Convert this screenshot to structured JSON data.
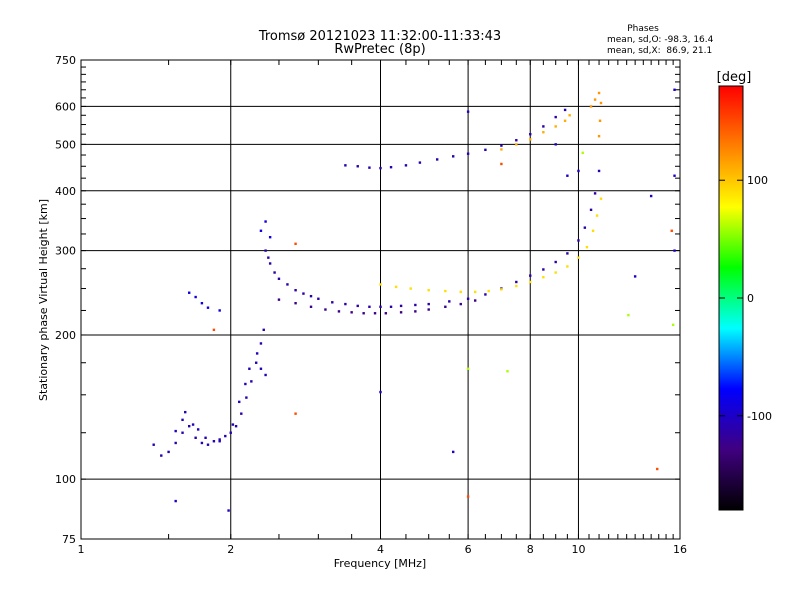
{
  "chart_data": {
    "type": "scatter",
    "title": "Tromsø 20121023 11:32:00-11:33:43",
    "subtitle": "RwPretec (8p)",
    "xlabel": "Frequency [MHz]",
    "ylabel": "Stationary phase Virtual Height [km]",
    "x_scale": "log",
    "y_scale": "log",
    "xlim": [
      1,
      16
    ],
    "ylim": [
      75,
      750
    ],
    "x_ticks": [
      1,
      2,
      4,
      6,
      8,
      10,
      16
    ],
    "y_ticks": [
      75,
      100,
      200,
      300,
      400,
      500,
      600,
      750
    ],
    "grid": true,
    "phase_stats": {
      "heading": "Phases",
      "line_o": "mean, sd,O: -98.3, 16.4",
      "line_x": "mean, sd,X:  86.9, 21.1"
    },
    "colorbar": {
      "label": "[deg]",
      "range": [
        -180,
        180
      ],
      "ticks": [
        100,
        0,
        -100
      ],
      "colors": [
        "#ff0000",
        "#ff8000",
        "#ffff00",
        "#00ff00",
        "#00ffff",
        "#0000ff",
        "#400080",
        "#000000"
      ]
    },
    "traces": [
      {
        "name": "",
        "phase": -110,
        "points": [
          [
            1.4,
            118
          ],
          [
            1.45,
            112
          ],
          [
            1.5,
            114
          ],
          [
            1.55,
            119
          ],
          [
            1.6,
            125
          ],
          [
            1.65,
            129
          ],
          [
            1.7,
            122
          ],
          [
            1.75,
            119
          ],
          [
            1.8,
            118
          ],
          [
            1.85,
            120
          ],
          [
            1.9,
            121
          ],
          [
            1.95,
            123
          ],
          [
            2.0,
            125
          ],
          [
            2.05,
            129
          ],
          [
            2.1,
            137
          ],
          [
            2.15,
            148
          ],
          [
            2.2,
            160
          ],
          [
            2.25,
            175
          ],
          [
            2.3,
            192
          ],
          [
            2.33,
            205
          ]
        ]
      },
      {
        "name": "",
        "phase": -105,
        "points": [
          [
            1.55,
            126
          ],
          [
            1.6,
            133
          ],
          [
            1.62,
            138
          ],
          [
            1.68,
            130
          ],
          [
            1.72,
            127
          ],
          [
            1.78,
            122
          ],
          [
            1.9,
            120
          ],
          [
            2.02,
            130
          ],
          [
            2.08,
            145
          ],
          [
            2.14,
            158
          ],
          [
            2.18,
            170
          ],
          [
            2.26,
            183
          ],
          [
            2.3,
            170
          ],
          [
            2.35,
            165
          ]
        ]
      },
      {
        "name": "",
        "phase": -112,
        "points": [
          [
            2.35,
            300
          ],
          [
            2.38,
            290
          ],
          [
            2.4,
            282
          ],
          [
            2.45,
            270
          ],
          [
            2.5,
            262
          ],
          [
            2.6,
            255
          ],
          [
            2.7,
            248
          ],
          [
            2.8,
            244
          ],
          [
            2.9,
            241
          ],
          [
            3.0,
            238
          ],
          [
            3.2,
            234
          ],
          [
            3.4,
            232
          ],
          [
            3.6,
            230
          ],
          [
            3.8,
            229
          ],
          [
            4.0,
            229
          ],
          [
            4.2,
            229
          ],
          [
            4.4,
            230
          ],
          [
            4.7,
            231
          ],
          [
            5.0,
            232
          ],
          [
            5.5,
            235
          ],
          [
            6.0,
            238
          ],
          [
            6.5,
            243
          ],
          [
            7.0,
            250
          ],
          [
            7.5,
            258
          ],
          [
            8.0,
            266
          ],
          [
            8.5,
            274
          ],
          [
            9.0,
            284
          ],
          [
            9.5,
            296
          ],
          [
            10.0,
            315
          ],
          [
            10.3,
            335
          ],
          [
            10.6,
            365
          ],
          [
            10.8,
            395
          ],
          [
            11.0,
            440
          ]
        ]
      },
      {
        "name": "",
        "phase": -125,
        "points": [
          [
            2.5,
            237
          ],
          [
            2.7,
            233
          ],
          [
            2.9,
            229
          ],
          [
            3.1,
            226
          ],
          [
            3.3,
            224
          ],
          [
            3.5,
            223
          ],
          [
            3.7,
            222
          ],
          [
            3.9,
            222
          ],
          [
            4.1,
            222
          ],
          [
            4.4,
            223
          ],
          [
            4.7,
            224
          ],
          [
            5.0,
            226
          ],
          [
            5.4,
            229
          ],
          [
            5.8,
            232
          ],
          [
            6.2,
            236
          ]
        ]
      },
      {
        "name": "",
        "phase": 90,
        "points": [
          [
            4.0,
            255
          ],
          [
            4.3,
            252
          ],
          [
            4.6,
            250
          ],
          [
            5.0,
            248
          ],
          [
            5.4,
            247
          ],
          [
            5.8,
            246
          ],
          [
            6.2,
            246
          ],
          [
            6.6,
            247
          ],
          [
            7.0,
            249
          ],
          [
            7.5,
            253
          ],
          [
            8.0,
            258
          ],
          [
            8.5,
            264
          ],
          [
            9.0,
            270
          ],
          [
            9.5,
            278
          ],
          [
            10.0,
            290
          ],
          [
            10.4,
            305
          ],
          [
            10.7,
            330
          ],
          [
            10.9,
            355
          ],
          [
            11.1,
            385
          ]
        ]
      },
      {
        "name": "",
        "phase": 110,
        "points": [
          [
            7.0,
            488
          ],
          [
            7.5,
            500
          ],
          [
            8.0,
            512
          ],
          [
            8.5,
            530
          ],
          [
            9.0,
            545
          ],
          [
            9.4,
            560
          ],
          [
            9.6,
            575
          ]
        ]
      },
      {
        "name": "",
        "phase": -110,
        "points": [
          [
            3.4,
            452
          ],
          [
            3.6,
            450
          ],
          [
            3.8,
            447
          ],
          [
            4.0,
            446
          ],
          [
            4.2,
            448
          ],
          [
            4.5,
            452
          ],
          [
            4.8,
            458
          ],
          [
            5.2,
            465
          ],
          [
            5.6,
            472
          ],
          [
            6.0,
            478
          ],
          [
            6.5,
            487
          ],
          [
            7.0,
            497
          ],
          [
            7.5,
            510
          ],
          [
            8.0,
            525
          ],
          [
            8.5,
            545
          ],
          [
            9.0,
            570
          ],
          [
            9.4,
            590
          ]
        ]
      },
      {
        "name": "",
        "phase": 120,
        "points": [
          [
            10.6,
            600
          ],
          [
            10.8,
            620
          ],
          [
            11.0,
            640
          ],
          [
            11.1,
            610
          ],
          [
            11.05,
            560
          ],
          [
            11.0,
            520
          ]
        ]
      },
      {
        "name": "",
        "phase": -90,
        "points": [
          [
            1.65,
            245
          ],
          [
            1.7,
            240
          ],
          [
            1.75,
            233
          ],
          [
            1.8,
            228
          ],
          [
            1.9,
            225
          ],
          [
            2.35,
            345
          ],
          [
            2.3,
            330
          ],
          [
            2.4,
            320
          ]
        ]
      },
      {
        "name": "",
        "phase": -100,
        "points": [
          [
            1.55,
            90
          ],
          [
            1.98,
            86
          ],
          [
            6.0,
            585
          ],
          [
            9.0,
            500
          ],
          [
            10.0,
            440
          ],
          [
            14.0,
            390
          ],
          [
            15.6,
            650
          ],
          [
            15.6,
            430
          ],
          [
            15.6,
            300
          ],
          [
            13.0,
            265
          ],
          [
            4.0,
            152
          ],
          [
            5.6,
            114
          ],
          [
            9.5,
            430
          ]
        ]
      },
      {
        "name": "",
        "phase": 60,
        "points": [
          [
            6.0,
            170
          ],
          [
            7.2,
            168
          ],
          [
            12.6,
            220
          ],
          [
            15.5,
            210
          ],
          [
            10.2,
            480
          ]
        ]
      },
      {
        "name": "",
        "phase": 150,
        "points": [
          [
            2.7,
            310
          ],
          [
            15.4,
            330
          ],
          [
            14.4,
            105
          ],
          [
            7.0,
            455
          ],
          [
            6.0,
            92
          ],
          [
            2.7,
            137
          ],
          [
            1.85,
            205
          ]
        ]
      }
    ]
  }
}
